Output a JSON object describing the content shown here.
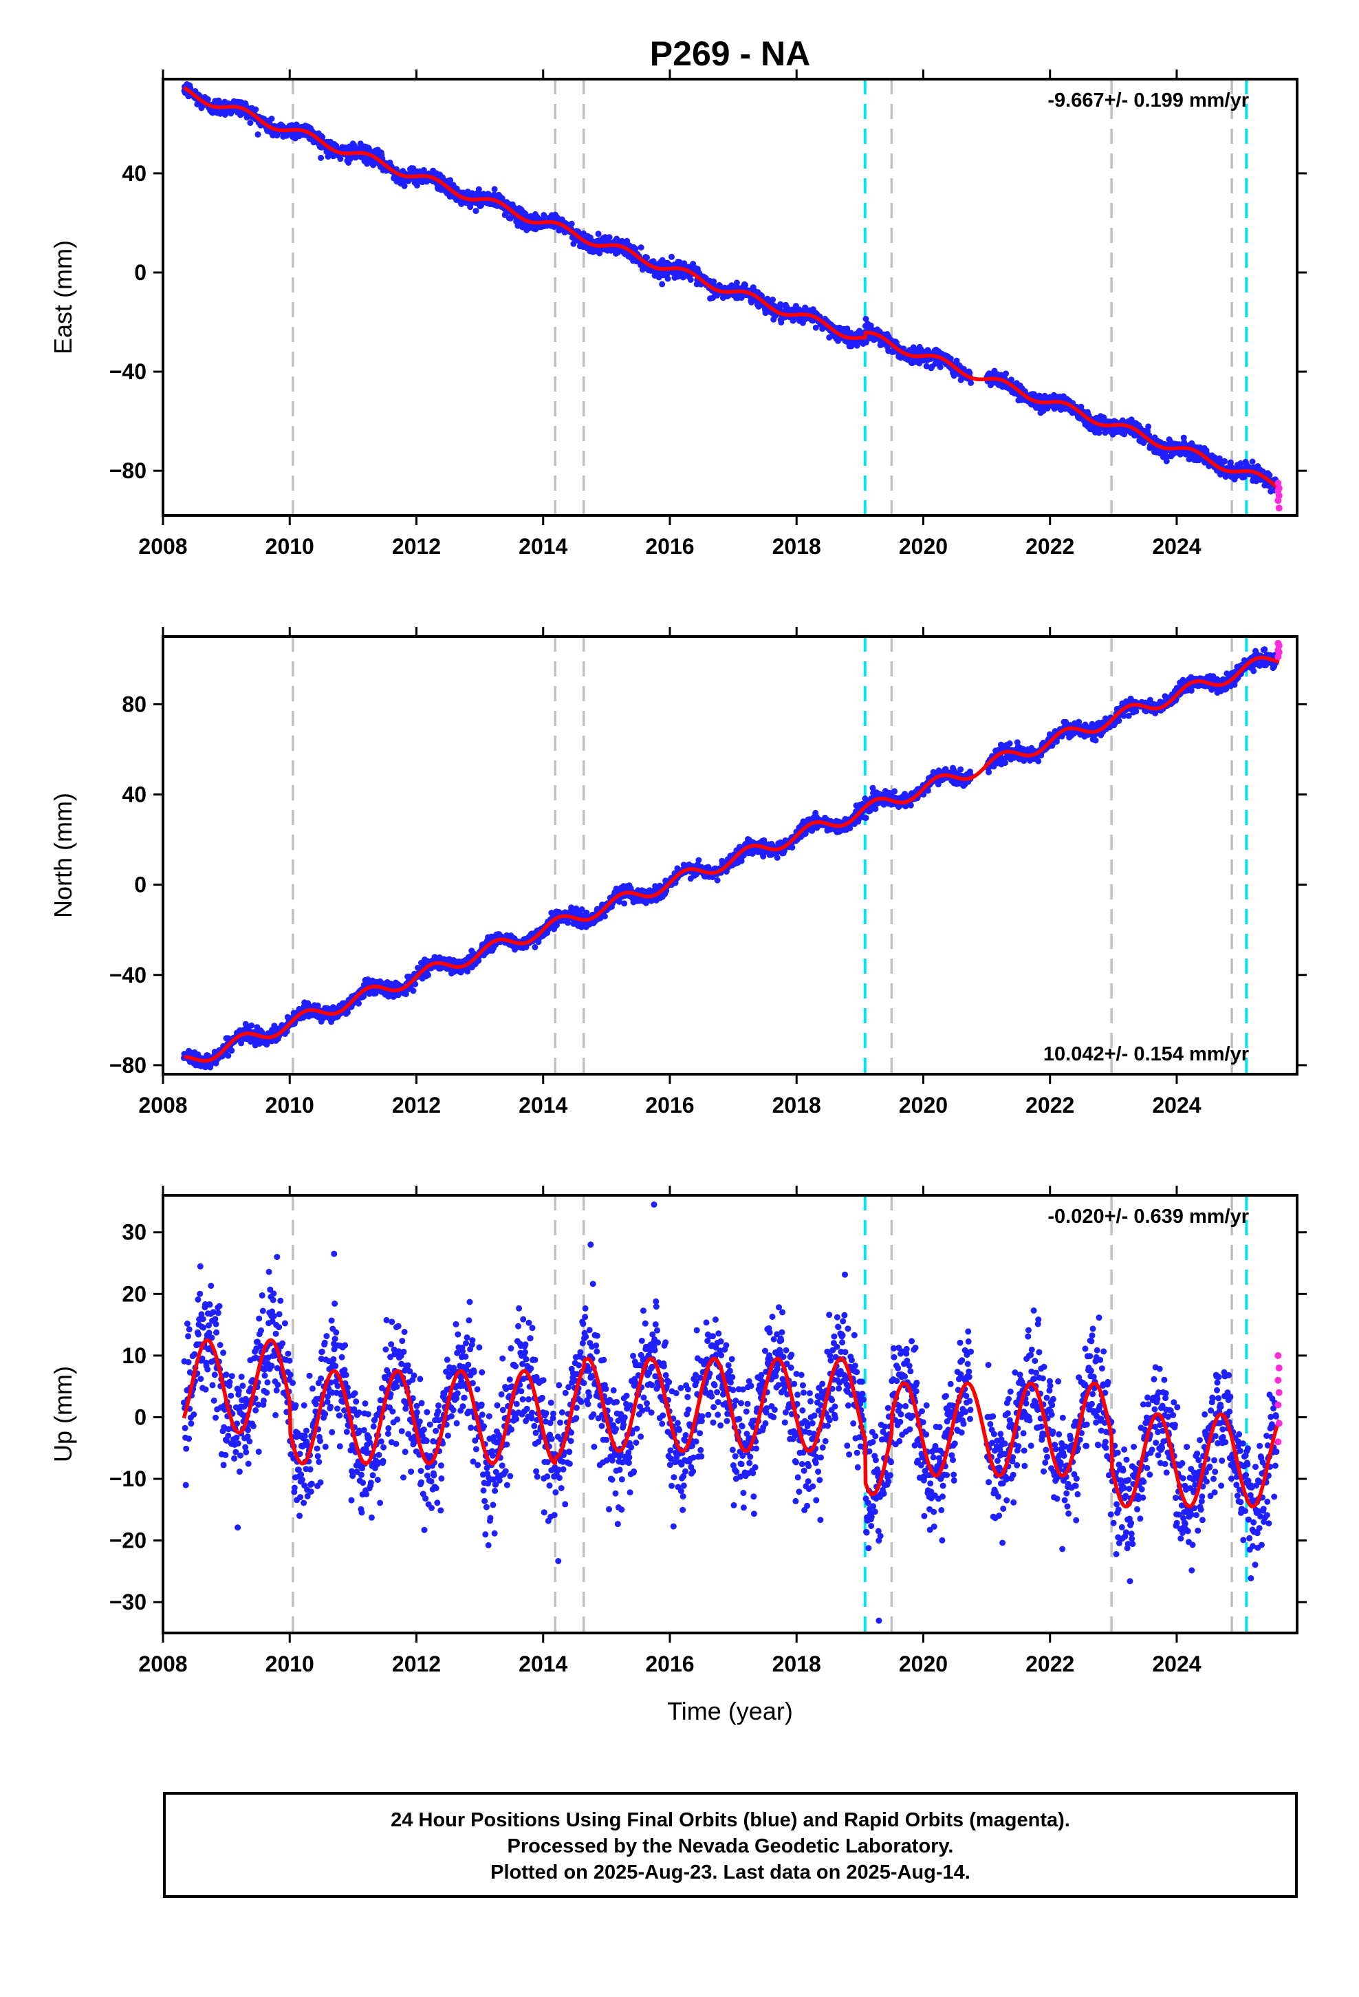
{
  "chart_data": [
    {
      "type": "scatter",
      "title": "P269 - NA",
      "ylabel": "East (mm)",
      "xlabel": "",
      "xlim": [
        2008.0,
        2025.9
      ],
      "ylim": [
        -98,
        78
      ],
      "xticks": [
        2008,
        2010,
        2012,
        2014,
        2016,
        2018,
        2020,
        2022,
        2024
      ],
      "yticks": [
        -80,
        -40,
        0,
        40
      ],
      "rate": "-9.667+/- 0.199 mm/yr",
      "grid": false,
      "start": 2008.33,
      "end": 2025.62,
      "fit_start_value": 73,
      "fit_end_value": -88,
      "seasonal_amplitude_mm": 1.8,
      "scatter_mm": 1.6,
      "rapid_points": [
        -85,
        -87,
        -88,
        -90,
        -92,
        -95
      ],
      "offsets": [
        {
          "epoch": 2019.08,
          "value_mm": 2.0
        }
      ],
      "data_gap": [
        2020.75,
        2021.0
      ]
    },
    {
      "type": "scatter",
      "title": "",
      "ylabel": "North (mm)",
      "xlabel": "",
      "xlim": [
        2008.0,
        2025.9
      ],
      "ylim": [
        -84,
        110
      ],
      "xticks": [
        2008,
        2010,
        2012,
        2014,
        2016,
        2018,
        2020,
        2022,
        2024
      ],
      "yticks": [
        -80,
        -40,
        0,
        40,
        80
      ],
      "rate": "10.042+/- 0.154 mm/yr",
      "grid": false,
      "start": 2008.33,
      "end": 2025.62,
      "fit_start_value": -79,
      "fit_end_value": 101,
      "seasonal_amplitude_mm": 3.0,
      "scatter_mm": 1.6,
      "rapid_points": [
        101,
        103,
        104,
        106,
        107
      ],
      "offsets": [],
      "data_gap": [
        2020.75,
        2021.0
      ]
    },
    {
      "type": "scatter",
      "title": "",
      "ylabel": "Up (mm)",
      "xlabel": "Time (year)",
      "xlim": [
        2008.0,
        2025.9
      ],
      "ylim": [
        -35,
        36
      ],
      "xticks": [
        2008,
        2010,
        2012,
        2014,
        2016,
        2018,
        2020,
        2022,
        2024
      ],
      "yticks": [
        -30,
        -20,
        -10,
        0,
        10,
        20,
        30
      ],
      "rate": "-0.020+/- 0.639 mm/yr",
      "grid": false,
      "start": 2008.33,
      "end": 2025.62,
      "seasonal_amplitude_mm": 7.5,
      "scatter_mm": 4.5,
      "fit_means": [
        {
          "from": 2008.33,
          "to": 2010.0,
          "value": 5.0
        },
        {
          "from": 2010.0,
          "to": 2014.19,
          "value": 0.0
        },
        {
          "from": 2014.19,
          "to": 2014.64,
          "value": 1.0
        },
        {
          "from": 2014.64,
          "to": 2019.08,
          "value": 2.0
        },
        {
          "from": 2019.08,
          "to": 2019.5,
          "value": -5.0
        },
        {
          "from": 2019.5,
          "to": 2022.97,
          "value": -2.0
        },
        {
          "from": 2022.97,
          "to": 2025.62,
          "value": -7.0
        }
      ],
      "rapid_points": [
        10,
        8,
        6,
        4,
        2,
        -1,
        -4
      ],
      "outliers": [
        [
          2015.75,
          34.5
        ],
        [
          2014.75,
          28
        ],
        [
          2009.8,
          26
        ],
        [
          2010.7,
          26.5
        ],
        [
          2019.3,
          -33
        ]
      ],
      "data_gap": [
        2020.75,
        2021.0
      ]
    }
  ],
  "equipment_changes_gray": [
    2010.05,
    2014.19,
    2014.64,
    2019.5,
    2022.97,
    2024.87
  ],
  "earthquakes_cyan": [
    2019.08,
    2025.1
  ],
  "colors": {
    "final_orbits": "#1f1fff",
    "rapid_orbits": "#ff2bd8",
    "fit": "#ff0000",
    "equipment_line": "#c0c0c0",
    "earthquake_line": "#00e5ee",
    "axes": "#000000"
  },
  "footer": {
    "line1": "24 Hour Positions Using Final Orbits (blue) and Rapid Orbits (magenta).",
    "line2": "Processed by the Nevada Geodetic Laboratory.",
    "line3": "Plotted on 2025-Aug-23. Last data on 2025-Aug-14."
  }
}
